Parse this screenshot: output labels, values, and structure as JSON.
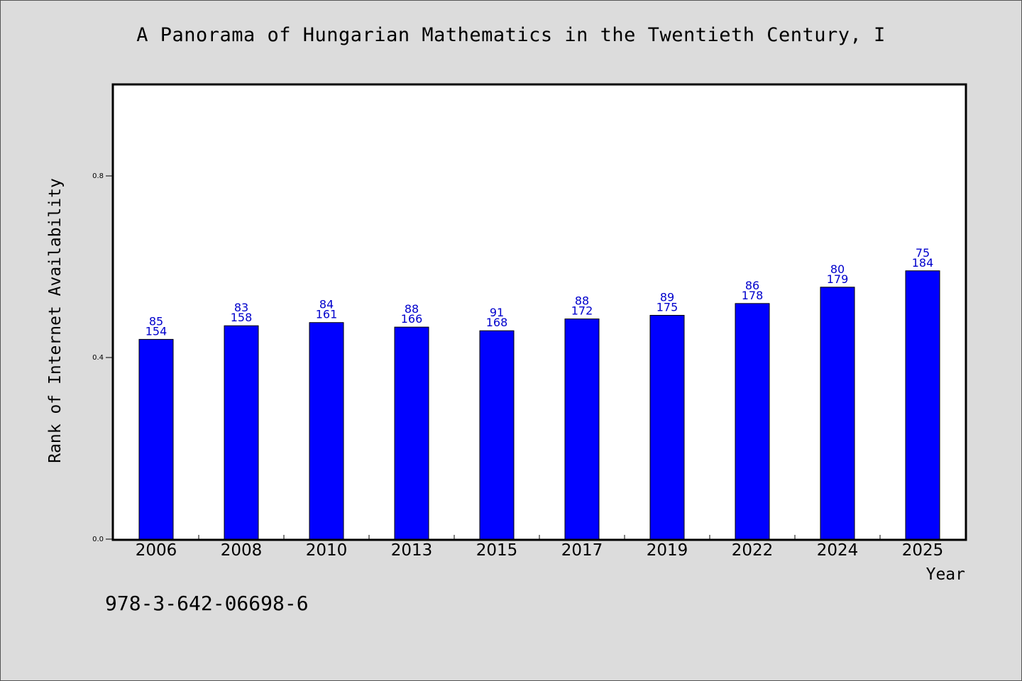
{
  "title": "A Panorama of Hungarian Mathematics in the Twentieth Century, I",
  "isbn": "978-3-642-06698-6",
  "colors": {
    "bar": "#0000ff",
    "label": "#0000cc",
    "background": "#dcdcdc",
    "plot_bg": "#ffffff"
  },
  "chart_data": {
    "type": "bar",
    "xlabel": "Year",
    "ylabel": "Rank of Internet Availability",
    "ylim": [
      0,
      1.0
    ],
    "yticks": [
      "0.0",
      "0.4",
      "0.8"
    ],
    "ytick_values": [
      0.0,
      0.4,
      0.8
    ],
    "grid": false,
    "categories": [
      "2006",
      "2008",
      "2010",
      "2013",
      "2015",
      "2017",
      "2019",
      "2022",
      "2024",
      "2025"
    ],
    "values": [
      0.44,
      0.47,
      0.477,
      0.467,
      0.459,
      0.485,
      0.493,
      0.519,
      0.555,
      0.591
    ],
    "label_top": [
      "85",
      "83",
      "84",
      "88",
      "91",
      "88",
      "89",
      "86",
      "80",
      "75"
    ],
    "label_bottom": [
      "154",
      "158",
      "161",
      "166",
      "168",
      "172",
      "175",
      "178",
      "179",
      "184"
    ]
  }
}
